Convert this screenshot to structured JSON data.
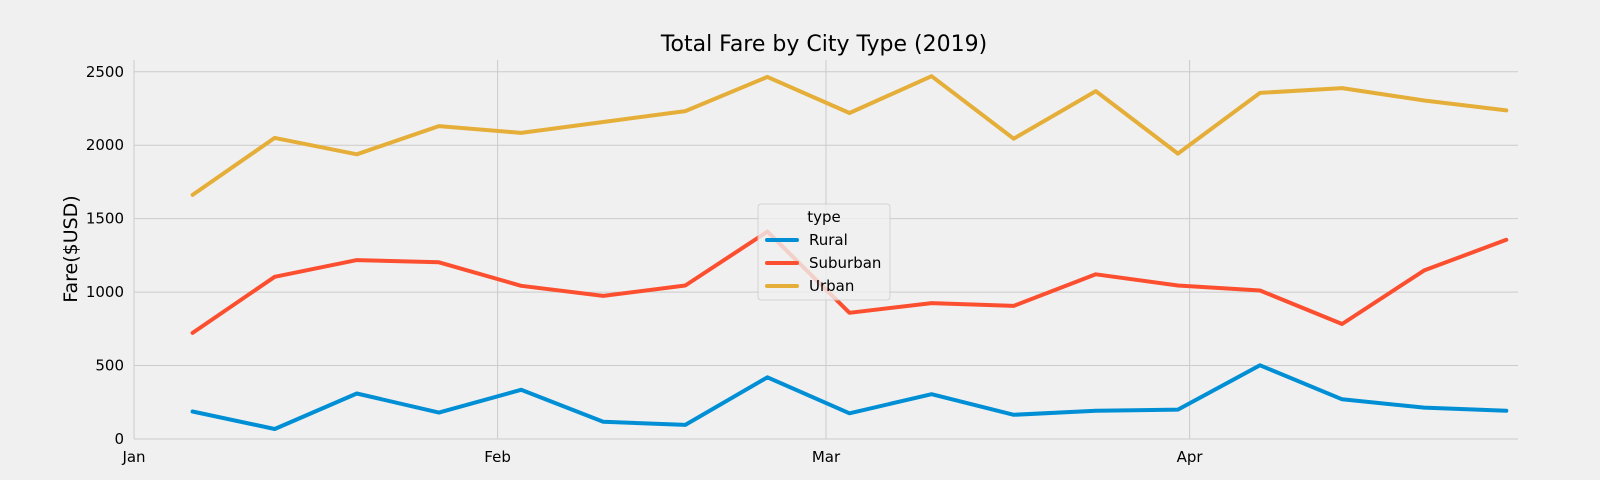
{
  "chart_data": {
    "type": "line",
    "title": "Total Fare by City Type (2019)",
    "xlabel": "",
    "ylabel": "Fare($USD)",
    "x_axis_type": "date",
    "xlim": [
      "2019-01-01",
      "2019-04-29"
    ],
    "x_ticks": [
      {
        "date": "2019-01-01",
        "label": "Jan"
      },
      {
        "date": "2019-02-01",
        "label": "Feb"
      },
      {
        "date": "2019-03-01",
        "label": "Mar"
      },
      {
        "date": "2019-04-01",
        "label": "Apr"
      }
    ],
    "ylim": [
      0,
      2580
    ],
    "y_ticks": [
      0,
      500,
      1000,
      1500,
      2000,
      2500
    ],
    "grid": true,
    "legend": {
      "title": "type",
      "placement": "center"
    },
    "x": [
      "2019-01-06",
      "2019-01-13",
      "2019-01-20",
      "2019-01-27",
      "2019-02-03",
      "2019-02-10",
      "2019-02-17",
      "2019-02-24",
      "2019-03-03",
      "2019-03-10",
      "2019-03-17",
      "2019-03-24",
      "2019-03-31",
      "2019-04-07",
      "2019-04-14",
      "2019-04-21",
      "2019-04-28"
    ],
    "series": [
      {
        "name": "Rural",
        "color": "#008fd5",
        "values": [
          187,
          68,
          310,
          180,
          335,
          118,
          96,
          420,
          175,
          305,
          165,
          192,
          200,
          502,
          270,
          214,
          192
        ]
      },
      {
        "name": "Suburban",
        "color": "#fc4f30",
        "values": [
          722,
          1104,
          1218,
          1203,
          1043,
          974,
          1045,
          1412,
          859,
          925,
          906,
          1121,
          1045,
          1011,
          783,
          1148,
          1356
        ]
      },
      {
        "name": "Urban",
        "color": "#e5ae38",
        "values": [
          1662,
          2050,
          1938,
          2130,
          2084,
          2158,
          2232,
          2465,
          2219,
          2470,
          2044,
          2368,
          1943,
          2356,
          2389,
          2304,
          2237
        ]
      }
    ]
  }
}
